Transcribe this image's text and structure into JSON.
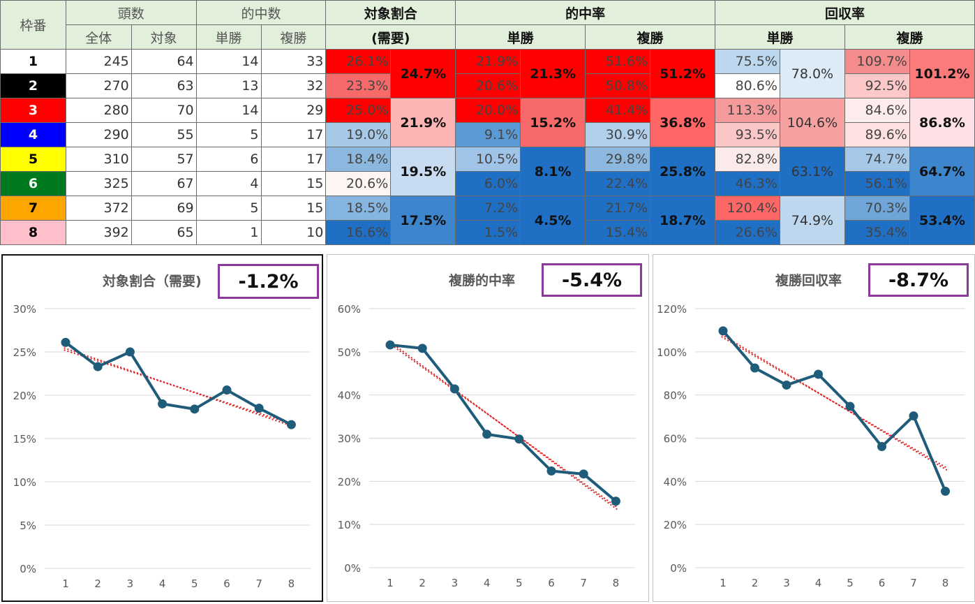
{
  "table": {
    "header": {
      "waku": "枠番",
      "tosu": "頭数",
      "zentai": "全体",
      "taisho": "対象",
      "tekichu_su": "的中数",
      "tansho": "単勝",
      "fukusho": "複勝",
      "taisho_wariai": "対象割合",
      "juyo": "(需要)",
      "tekichu_ritsu": "的中率",
      "tansho_b": "単勝",
      "fukusho_b": "複勝",
      "kaishu_ritsu": "回収率",
      "tansho_c": "単勝",
      "fukusho_c": "複勝"
    },
    "rows": [
      {
        "waku": "1",
        "zentai": "245",
        "taisho": "64",
        "tan": "14",
        "fuku": "33",
        "ratio": "26.1%",
        "tan_hit": "21.9%",
        "fuku_hit": "51.6%",
        "tan_ret": "75.5%",
        "fuku_ret": "109.7%"
      },
      {
        "waku": "2",
        "zentai": "270",
        "taisho": "63",
        "tan": "13",
        "fuku": "32",
        "ratio": "23.3%",
        "tan_hit": "20.6%",
        "fuku_hit": "50.8%",
        "tan_ret": "80.6%",
        "fuku_ret": "92.5%"
      },
      {
        "waku": "3",
        "zentai": "280",
        "taisho": "70",
        "tan": "14",
        "fuku": "29",
        "ratio": "25.0%",
        "tan_hit": "20.0%",
        "fuku_hit": "41.4%",
        "tan_ret": "113.3%",
        "fuku_ret": "84.6%"
      },
      {
        "waku": "4",
        "zentai": "290",
        "taisho": "55",
        "tan": "5",
        "fuku": "17",
        "ratio": "19.0%",
        "tan_hit": "9.1%",
        "fuku_hit": "30.9%",
        "tan_ret": "93.5%",
        "fuku_ret": "89.6%"
      },
      {
        "waku": "5",
        "zentai": "310",
        "taisho": "57",
        "tan": "6",
        "fuku": "17",
        "ratio": "18.4%",
        "tan_hit": "10.5%",
        "fuku_hit": "29.8%",
        "tan_ret": "82.8%",
        "fuku_ret": "74.7%"
      },
      {
        "waku": "6",
        "zentai": "325",
        "taisho": "67",
        "tan": "4",
        "fuku": "15",
        "ratio": "20.6%",
        "tan_hit": "6.0%",
        "fuku_hit": "22.4%",
        "tan_ret": "46.3%",
        "fuku_ret": "56.1%"
      },
      {
        "waku": "7",
        "zentai": "372",
        "taisho": "69",
        "tan": "5",
        "fuku": "15",
        "ratio": "18.5%",
        "tan_hit": "7.2%",
        "fuku_hit": "21.7%",
        "tan_ret": "120.4%",
        "fuku_ret": "70.3%"
      },
      {
        "waku": "8",
        "zentai": "392",
        "taisho": "65",
        "tan": "1",
        "fuku": "10",
        "ratio": "16.6%",
        "tan_hit": "1.5%",
        "fuku_hit": "15.4%",
        "tan_ret": "26.6%",
        "fuku_ret": "35.4%"
      }
    ],
    "pairs": [
      {
        "ratio": "24.7%",
        "tan_hit": "21.3%",
        "fuku_hit": "51.2%",
        "tan_ret": "78.0%",
        "fuku_ret": "101.2%"
      },
      {
        "ratio": "21.9%",
        "tan_hit": "15.2%",
        "fuku_hit": "36.8%",
        "tan_ret": "104.6%",
        "fuku_ret": "86.8%"
      },
      {
        "ratio": "19.5%",
        "tan_hit": "8.1%",
        "fuku_hit": "25.8%",
        "tan_ret": "63.1%",
        "fuku_ret": "64.7%"
      },
      {
        "ratio": "17.5%",
        "tan_hit": "4.5%",
        "fuku_hit": "18.7%",
        "tan_ret": "74.9%",
        "fuku_ret": "53.4%"
      }
    ],
    "colors": {
      "waku_bg": [
        "#ffffff",
        "#000000",
        "#ff0000",
        "#0000ff",
        "#ffff00",
        "#007a1f",
        "#ffa500",
        "#ffc0cb"
      ],
      "waku_fg": [
        "#000000",
        "#ffffff",
        "#ffffff",
        "#ffffff",
        "#000000",
        "#ffffff",
        "#000000",
        "#000000"
      ],
      "ratio": [
        "#ff0000",
        "#f86a6a",
        "#ff0000",
        "#a6c9e8",
        "#8cb8e0",
        "#fdf4f4",
        "#85b5e0",
        "#1f6fc5"
      ],
      "tan_hit": [
        "#ff0000",
        "#ff0000",
        "#ff0000",
        "#5b9bd5",
        "#a0c4e8",
        "#1f6fc5",
        "#1f6fc5",
        "#1f6fc5"
      ],
      "fuku_hit": [
        "#ff0000",
        "#ff0000",
        "#ff0000",
        "#b0d0ec",
        "#8cb8e0",
        "#1f6fc5",
        "#1f6fc5",
        "#1f6fc5"
      ],
      "tan_ret": [
        "#bdd7ee",
        "#ffffff",
        "#f59a9a",
        "#fbc6c6",
        "#fbeaea",
        "#1f6fc5",
        "#ff6666",
        "#1f6fc5"
      ],
      "fuku_ret": [
        "#f48c8c",
        "#fcc8c8",
        "#fdecec",
        "#fde1e1",
        "#a6c9e8",
        "#1f6fc5",
        "#6fa5d8",
        "#1f6fc5"
      ],
      "pair_ratio": [
        "#ff0000",
        "#fdb4b4",
        "#c7dcf0",
        "#3d85cd"
      ],
      "pair_tan_hit": [
        "#ff0000",
        "#f86a6a",
        "#1f6fc5",
        "#1f6fc5"
      ],
      "pair_fuku_hit": [
        "#ff0000",
        "#ff6666",
        "#1f6fc5",
        "#1f6fc5"
      ],
      "pair_tan_ret": [
        "#ddebf7",
        "#f7a0a0",
        "#1f6fc5",
        "#bdd7ee"
      ],
      "pair_fuku_ret": [
        "#fb7a7a",
        "#fde1e5",
        "#3d85cd",
        "#1f6fc5"
      ],
      "header_bg": "#e2efda",
      "line": "#1f5c7a",
      "trend": "#e02020",
      "box_border": "#8b3a9c"
    }
  },
  "charts": [
    {
      "title": "対象割合（需要)",
      "badge": "-1.2%"
    },
    {
      "title": "複勝的中率",
      "badge": "-5.4%"
    },
    {
      "title": "複勝回収率",
      "badge": "-8.7%"
    }
  ],
  "chart_data": [
    {
      "type": "line",
      "title": "対象割合（需要)",
      "x": [
        1,
        2,
        3,
        4,
        5,
        6,
        7,
        8
      ],
      "values": [
        26.1,
        23.3,
        25.0,
        19.0,
        18.4,
        20.6,
        18.5,
        16.6
      ],
      "ylim": [
        0,
        30
      ],
      "yticks": [
        "0%",
        "5%",
        "10%",
        "15%",
        "20%",
        "25%",
        "30%"
      ],
      "trend": "linear dotted",
      "grid": true
    },
    {
      "type": "line",
      "title": "複勝的中率",
      "x": [
        1,
        2,
        3,
        4,
        5,
        6,
        7,
        8
      ],
      "values": [
        51.6,
        50.8,
        41.4,
        30.9,
        29.8,
        22.4,
        21.7,
        15.4
      ],
      "ylim": [
        0,
        60
      ],
      "yticks": [
        "0%",
        "10%",
        "20%",
        "30%",
        "40%",
        "50%",
        "60%"
      ],
      "trend": "linear dotted",
      "grid": true
    },
    {
      "type": "line",
      "title": "複勝回収率",
      "x": [
        1,
        2,
        3,
        4,
        5,
        6,
        7,
        8
      ],
      "values": [
        109.7,
        92.5,
        84.6,
        89.6,
        74.7,
        56.1,
        70.3,
        35.4
      ],
      "ylim": [
        0,
        120
      ],
      "yticks": [
        "0%",
        "20%",
        "40%",
        "60%",
        "80%",
        "100%",
        "120%"
      ],
      "trend": "linear dotted",
      "grid": true
    }
  ]
}
